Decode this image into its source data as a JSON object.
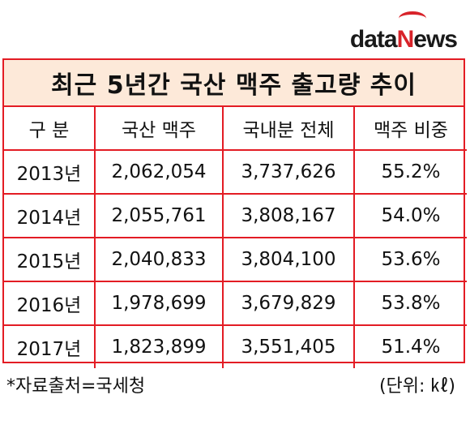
{
  "logo": {
    "part1": "d",
    "part2": "ata",
    "part3": "N",
    "part4": "ews"
  },
  "table": {
    "title": "최근 5년간 국산 맥주 출고량 추이",
    "headers": [
      "구 분",
      "국산 맥주",
      "국내분 전체",
      "맥주 비중"
    ],
    "rows": [
      [
        "2013년",
        "2,062,054",
        "3,737,626",
        "55.2%"
      ],
      [
        "2014년",
        "2,055,761",
        "3,808,167",
        "54.0%"
      ],
      [
        "2015년",
        "2,040,833",
        "3,804,100",
        "53.6%"
      ],
      [
        "2016년",
        "1,978,699",
        "3,679,829",
        "53.8%"
      ],
      [
        "2017년",
        "1,823,899",
        "3,551,405",
        "51.4%"
      ]
    ]
  },
  "footer": {
    "source": "*자료출처=국세청",
    "unit": "(단위: ㎘)"
  },
  "colors": {
    "border": "#e31c24",
    "title_bg": "#fde9d9",
    "brand_red": "#d8232a"
  }
}
